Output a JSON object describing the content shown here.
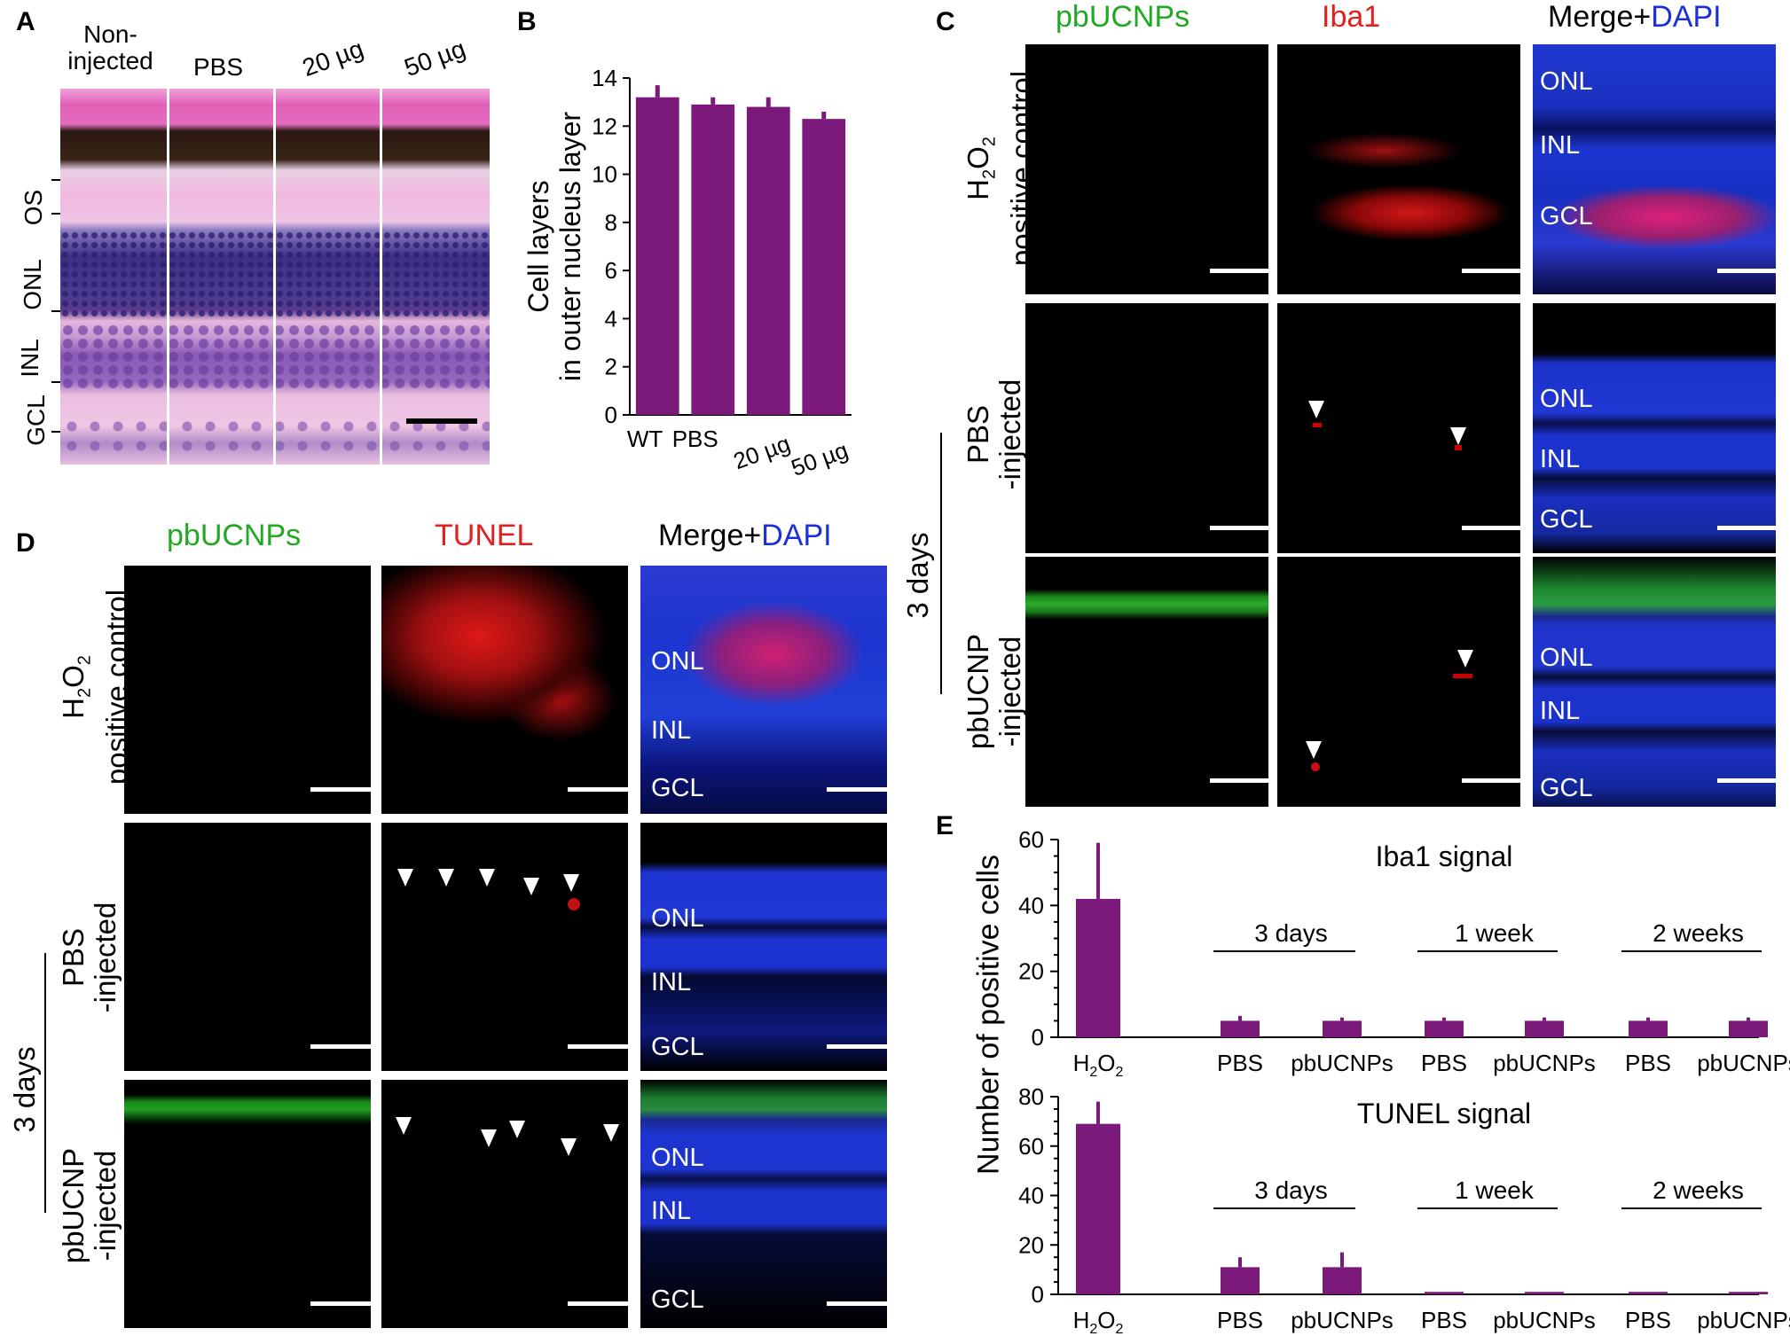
{
  "panel_letters": {
    "a": "A",
    "b": "B",
    "c": "C",
    "d": "D",
    "e": "E"
  },
  "panel_a": {
    "columns": [
      "Non-\ninjected",
      "PBS",
      "20 µg",
      "50 µg"
    ],
    "layers": [
      "OS",
      "ONL",
      "INL",
      "GCL"
    ],
    "colors": {
      "pink": "#e97bc4",
      "dark": "#2a1a12",
      "nuclei": "#5a3a8a",
      "bg": "#e8b8dc"
    }
  },
  "chart_data": [
    {
      "id": "B",
      "type": "bar",
      "categories": [
        "WT",
        "PBS",
        "20 µg",
        "50 µg"
      ],
      "values": [
        13.2,
        12.9,
        12.8,
        12.3
      ],
      "errors": [
        0.5,
        0.3,
        0.4,
        0.3
      ],
      "ylabel": "Cell layers\nin outer nucleus layer",
      "ylim": [
        0,
        14
      ],
      "yticks": [
        0,
        2,
        4,
        6,
        8,
        10,
        12,
        14
      ],
      "color": "#7b1a7b"
    },
    {
      "id": "E-top",
      "type": "bar",
      "title": "Iba1 signal",
      "categories": [
        "H2O2",
        "PBS",
        "pbUCNPs",
        "PBS",
        "pbUCNPs",
        "PBS",
        "pbUCNPs"
      ],
      "values": [
        42,
        5,
        5,
        5,
        5,
        5,
        5
      ],
      "errors": [
        17,
        1.5,
        1,
        1,
        1,
        1,
        1
      ],
      "groups": [
        "3 days",
        "1 week",
        "2 weeks"
      ],
      "ylim": [
        0,
        60
      ],
      "yticks": [
        0,
        20,
        40,
        60
      ],
      "color": "#7b1a7b"
    },
    {
      "id": "E-bottom",
      "type": "bar",
      "title": "TUNEL signal",
      "categories": [
        "H2O2",
        "PBS",
        "pbUCNPs",
        "PBS",
        "pbUCNPs",
        "PBS",
        "pbUCNPs"
      ],
      "values": [
        69,
        11,
        11,
        1,
        1,
        1,
        1
      ],
      "errors": [
        9,
        4,
        6,
        0,
        0,
        0,
        0
      ],
      "groups": [
        "3 days",
        "1 week",
        "2 weeks"
      ],
      "ylim": [
        0,
        80
      ],
      "yticks": [
        0,
        20,
        40,
        60,
        80
      ],
      "color": "#7b1a7b"
    }
  ],
  "panel_e": {
    "ylabel": "Number of positive cells"
  },
  "panel_c": {
    "headers": {
      "green": "pbUCNPs",
      "red": "Iba1",
      "merge": "Merge+",
      "dapi": "DAPI"
    },
    "rows": [
      "positive control",
      "PBS\n-injected",
      "pbUCNP\n-injected"
    ],
    "row0_line1": "H",
    "row0_sub": "2",
    "row0_mid": "O",
    "row0_sub2": "2",
    "days": "3 days",
    "layers": [
      "ONL",
      "INL",
      "GCL"
    ]
  },
  "panel_d": {
    "headers": {
      "green": "pbUCNPs",
      "red": "TUNEL",
      "merge": "Merge+",
      "dapi": "DAPI"
    },
    "rows": [
      "positive control",
      "PBS\n-injected",
      "pbUCNP\n-injected"
    ],
    "row0_line1": "H",
    "row0_sub": "2",
    "row0_mid": "O",
    "row0_sub2": "2",
    "days": "3 days",
    "layers": [
      "ONL",
      "INL",
      "GCL"
    ]
  },
  "colors": {
    "bar": "#7b1a7b",
    "green": "#22a822",
    "red": "#e01f1f",
    "blue": "#1a2fd9"
  }
}
